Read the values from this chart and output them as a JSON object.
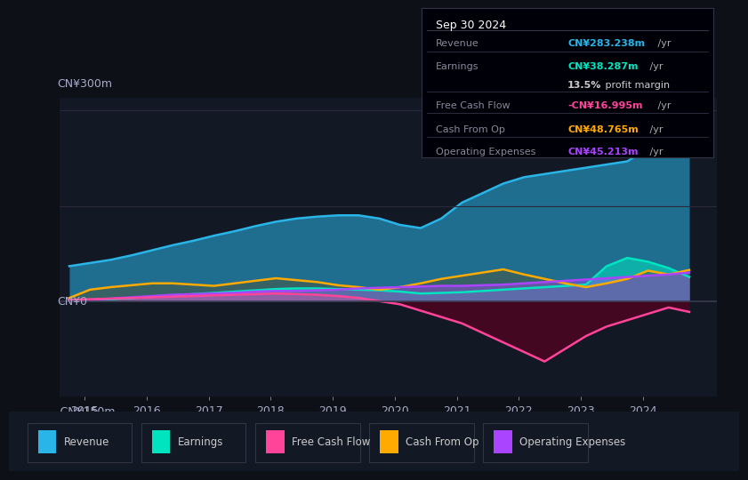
{
  "background_color": "#0d1117",
  "plot_bg_color": "#131825",
  "ylabel_top": "CN¥300m",
  "ylabel_zero": "CN¥0",
  "ylabel_bottom": "-CN¥150m",
  "legend": [
    {
      "label": "Revenue",
      "color": "#29b5e8"
    },
    {
      "label": "Earnings",
      "color": "#00e5c0"
    },
    {
      "label": "Free Cash Flow",
      "color": "#ff4499"
    },
    {
      "label": "Cash From Op",
      "color": "#ffaa00"
    },
    {
      "label": "Operating Expenses",
      "color": "#aa44ff"
    }
  ],
  "info_box": {
    "title": "Sep 30 2024",
    "rows": [
      {
        "label": "Revenue",
        "value": "CN¥283.238m /yr",
        "value_color": "#29b5e8"
      },
      {
        "label": "Earnings",
        "value": "CN¥38.287m /yr",
        "value_color": "#00e5c0"
      },
      {
        "label": "",
        "value": "13.5% profit margin",
        "value_color": "#cccccc"
      },
      {
        "label": "Free Cash Flow",
        "value": "-CN¥16.995m /yr",
        "value_color": "#ff4499"
      },
      {
        "label": "Cash From Op",
        "value": "CN¥48.765m /yr",
        "value_color": "#ffaa00"
      },
      {
        "label": "Operating Expenses",
        "value": "CN¥45.213m /yr",
        "value_color": "#aa44ff"
      }
    ]
  },
  "revenue": [
    55,
    60,
    65,
    72,
    80,
    88,
    95,
    103,
    110,
    118,
    125,
    130,
    133,
    135,
    135,
    130,
    120,
    115,
    130,
    155,
    170,
    185,
    195,
    200,
    205,
    210,
    215,
    220,
    240,
    260,
    283
  ],
  "earnings": [
    1,
    2,
    3,
    5,
    7,
    9,
    11,
    13,
    15,
    17,
    19,
    20,
    20,
    19,
    18,
    17,
    15,
    12,
    13,
    14,
    16,
    18,
    20,
    22,
    24,
    26,
    55,
    68,
    62,
    52,
    38
  ],
  "free_cash_flow": [
    2,
    3,
    4,
    5,
    6,
    7,
    8,
    9,
    10,
    11,
    12,
    11,
    10,
    8,
    5,
    0,
    -5,
    -15,
    -25,
    -35,
    -50,
    -65,
    -80,
    -95,
    -75,
    -55,
    -40,
    -30,
    -20,
    -10,
    -17
  ],
  "cash_from_op": [
    5,
    18,
    22,
    25,
    28,
    28,
    26,
    24,
    28,
    32,
    36,
    33,
    30,
    25,
    22,
    18,
    22,
    28,
    35,
    40,
    45,
    50,
    42,
    35,
    28,
    22,
    28,
    35,
    48,
    42,
    49
  ],
  "operating_expenses": [
    1,
    2,
    4,
    6,
    8,
    10,
    11,
    12,
    13,
    15,
    16,
    16,
    17,
    18,
    20,
    21,
    22,
    23,
    24,
    24,
    25,
    26,
    28,
    30,
    32,
    34,
    36,
    38,
    40,
    42,
    45
  ]
}
